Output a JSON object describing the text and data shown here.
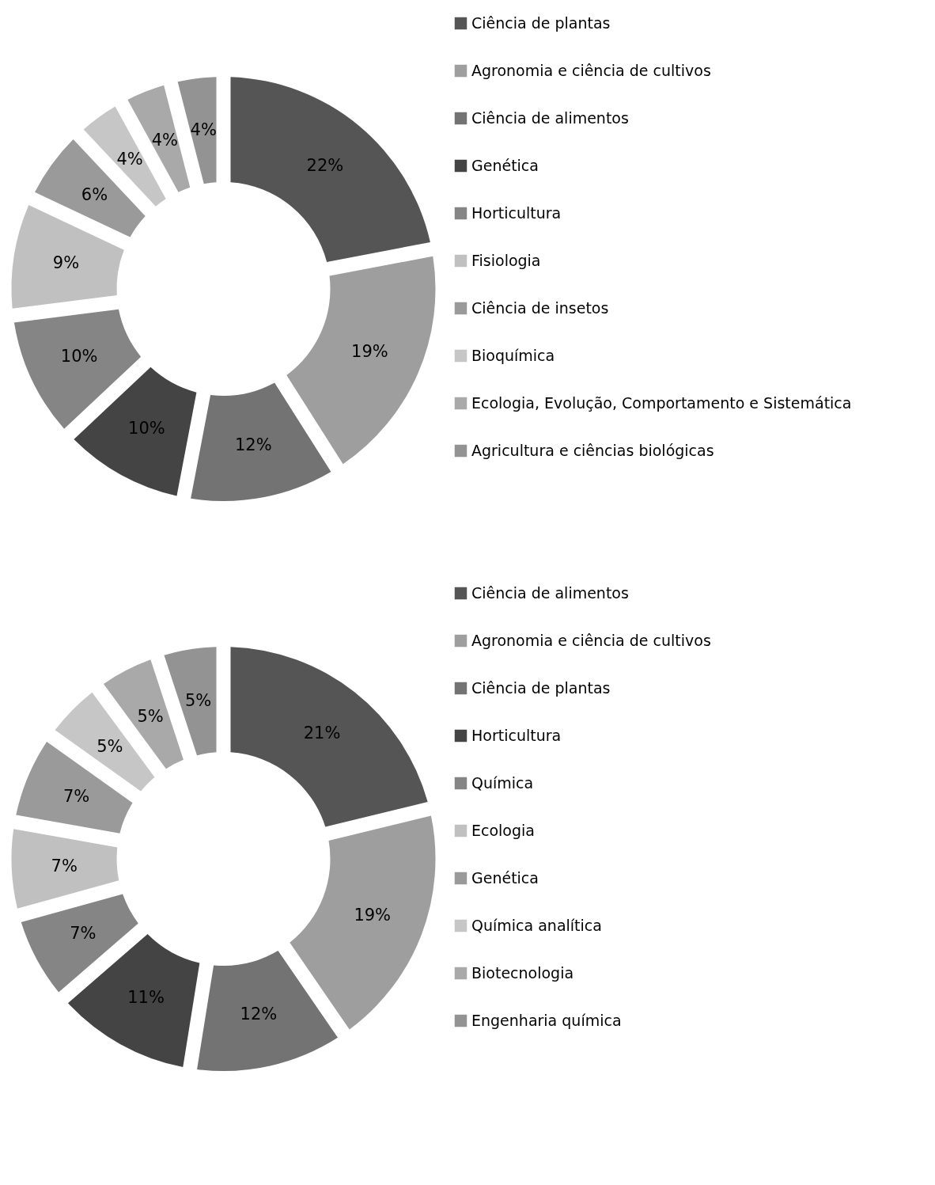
{
  "chart_data": [
    {
      "type": "donut",
      "categories": [
        "Ciência de plantas",
        "Agronomia e ciência de cultivos",
        "Ciência de alimentos",
        "Genética",
        "Horticultura",
        "Fisiologia",
        "Ciência de insetos",
        "Bioquímica",
        "Ecologia, Evolução, Comportamento e Sistemática",
        "Agricultura e ciências biológicas"
      ],
      "values": [
        22,
        19,
        12,
        10,
        10,
        9,
        6,
        4,
        4,
        4
      ],
      "value_labels": [
        "22%",
        "19%",
        "12%",
        "10%",
        "10%",
        "9%",
        "6%",
        "4%",
        "4%",
        "4%"
      ],
      "colors": [
        "#555555",
        "#9e9e9e",
        "#737373",
        "#444444",
        "#858585",
        "#c0c0c0",
        "#9a9a9a",
        "#c6c6c6",
        "#a9a9a9",
        "#939393"
      ],
      "legend": "right"
    },
    {
      "type": "donut",
      "categories": [
        "Ciência de alimentos",
        "Agronomia e ciência de cultivos",
        "Ciência de plantas",
        "Horticultura",
        "Química",
        "Ecologia",
        "Genética",
        "Química analítica",
        "Biotecnologia",
        "Engenharia química"
      ],
      "values": [
        21,
        19,
        12,
        11,
        7,
        7,
        7,
        5,
        5,
        5
      ],
      "value_labels": [
        "21%",
        "19%",
        "12%",
        "11%",
        "7%",
        "7%",
        "7%",
        "5%",
        "5%",
        "5%"
      ],
      "colors": [
        "#555555",
        "#9e9e9e",
        "#737373",
        "#444444",
        "#858585",
        "#c0c0c0",
        "#9a9a9a",
        "#c6c6c6",
        "#a9a9a9",
        "#939393"
      ],
      "legend": "right"
    }
  ]
}
